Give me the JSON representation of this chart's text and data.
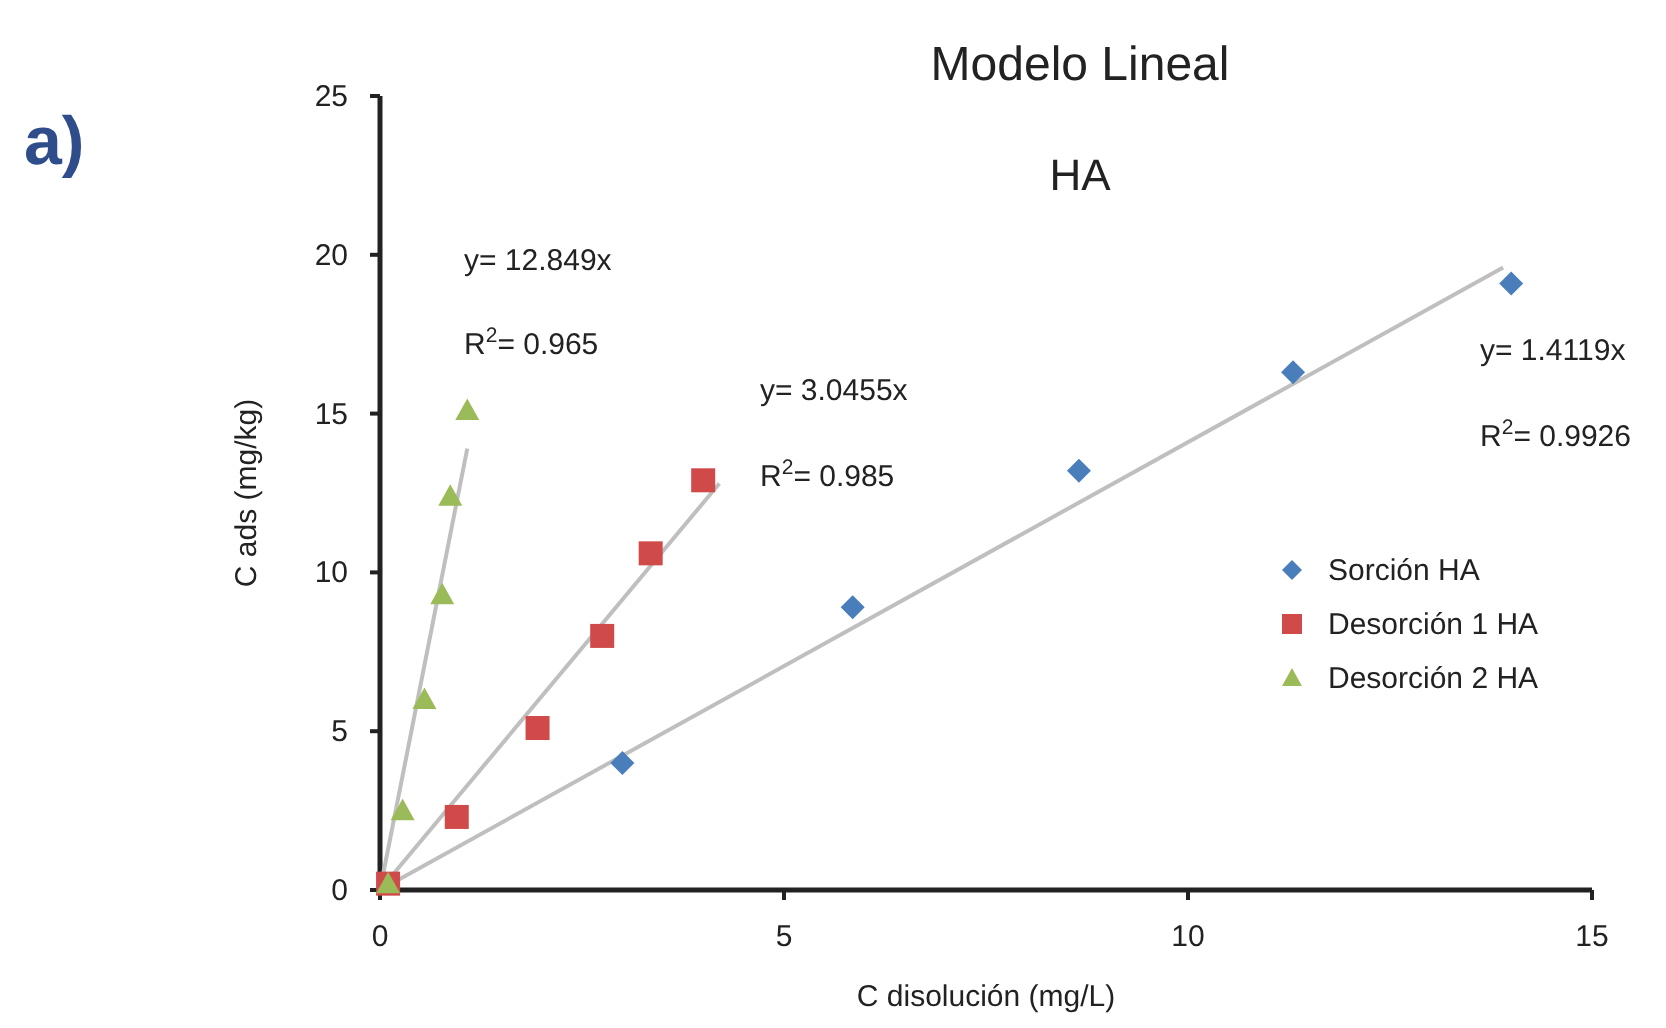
{
  "chart_data": {
    "type": "scatter",
    "title": "Modelo Lineal",
    "subtitle": "HA",
    "xlabel": "C  disolución (mg/L)",
    "ylabel": "C ads (mg/kg)",
    "xlim": [
      0,
      15
    ],
    "xticks": [
      0,
      5,
      10,
      15
    ],
    "ylim": [
      0,
      25
    ],
    "yticks": [
      0,
      5,
      10,
      15,
      20,
      25
    ],
    "grid": false,
    "legend": "right",
    "series": [
      {
        "name": "Sorción HA",
        "color": "#4a7ebb",
        "marker": "diamond",
        "x": [
          3.0,
          5.85,
          8.65,
          11.3,
          14.0
        ],
        "values": [
          4.0,
          8.9,
          13.2,
          16.3,
          19.1
        ]
      },
      {
        "name": "Desorción 1 HA",
        "color": "#d04a4a",
        "marker": "square",
        "x": [
          0.1,
          0.95,
          1.95,
          2.75,
          3.35,
          4.0
        ],
        "values": [
          0.2,
          2.3,
          5.1,
          8.0,
          10.6,
          12.9
        ]
      },
      {
        "name": "Desorción 2 HA",
        "color": "#9bbb59",
        "marker": "triangle",
        "x": [
          0.1,
          0.28,
          0.55,
          0.77,
          0.87,
          1.08
        ],
        "values": [
          0.2,
          2.5,
          6.0,
          9.3,
          12.4,
          15.1
        ]
      },
      {
        "type": "line",
        "color": "#bfbfbf",
        "marker": "none",
        "x": [
          0,
          13.9
        ],
        "values": [
          0,
          19.6
        ]
      },
      {
        "type": "line",
        "color": "#bfbfbf",
        "marker": "none",
        "x": [
          0,
          4.2
        ],
        "values": [
          0,
          12.8
        ]
      },
      {
        "type": "line",
        "color": "#bfbfbf",
        "marker": "none",
        "x": [
          0,
          1.08
        ],
        "values": [
          0,
          13.9
        ]
      }
    ],
    "annotations": [
      "a)",
      "y= 12.849x",
      "R$^{2}$= 0.965",
      "y= 3.0455x",
      "R$^{2}$= 0.985",
      "y= 1.4119x",
      "R$^{2}$= 0.9926"
    ]
  }
}
